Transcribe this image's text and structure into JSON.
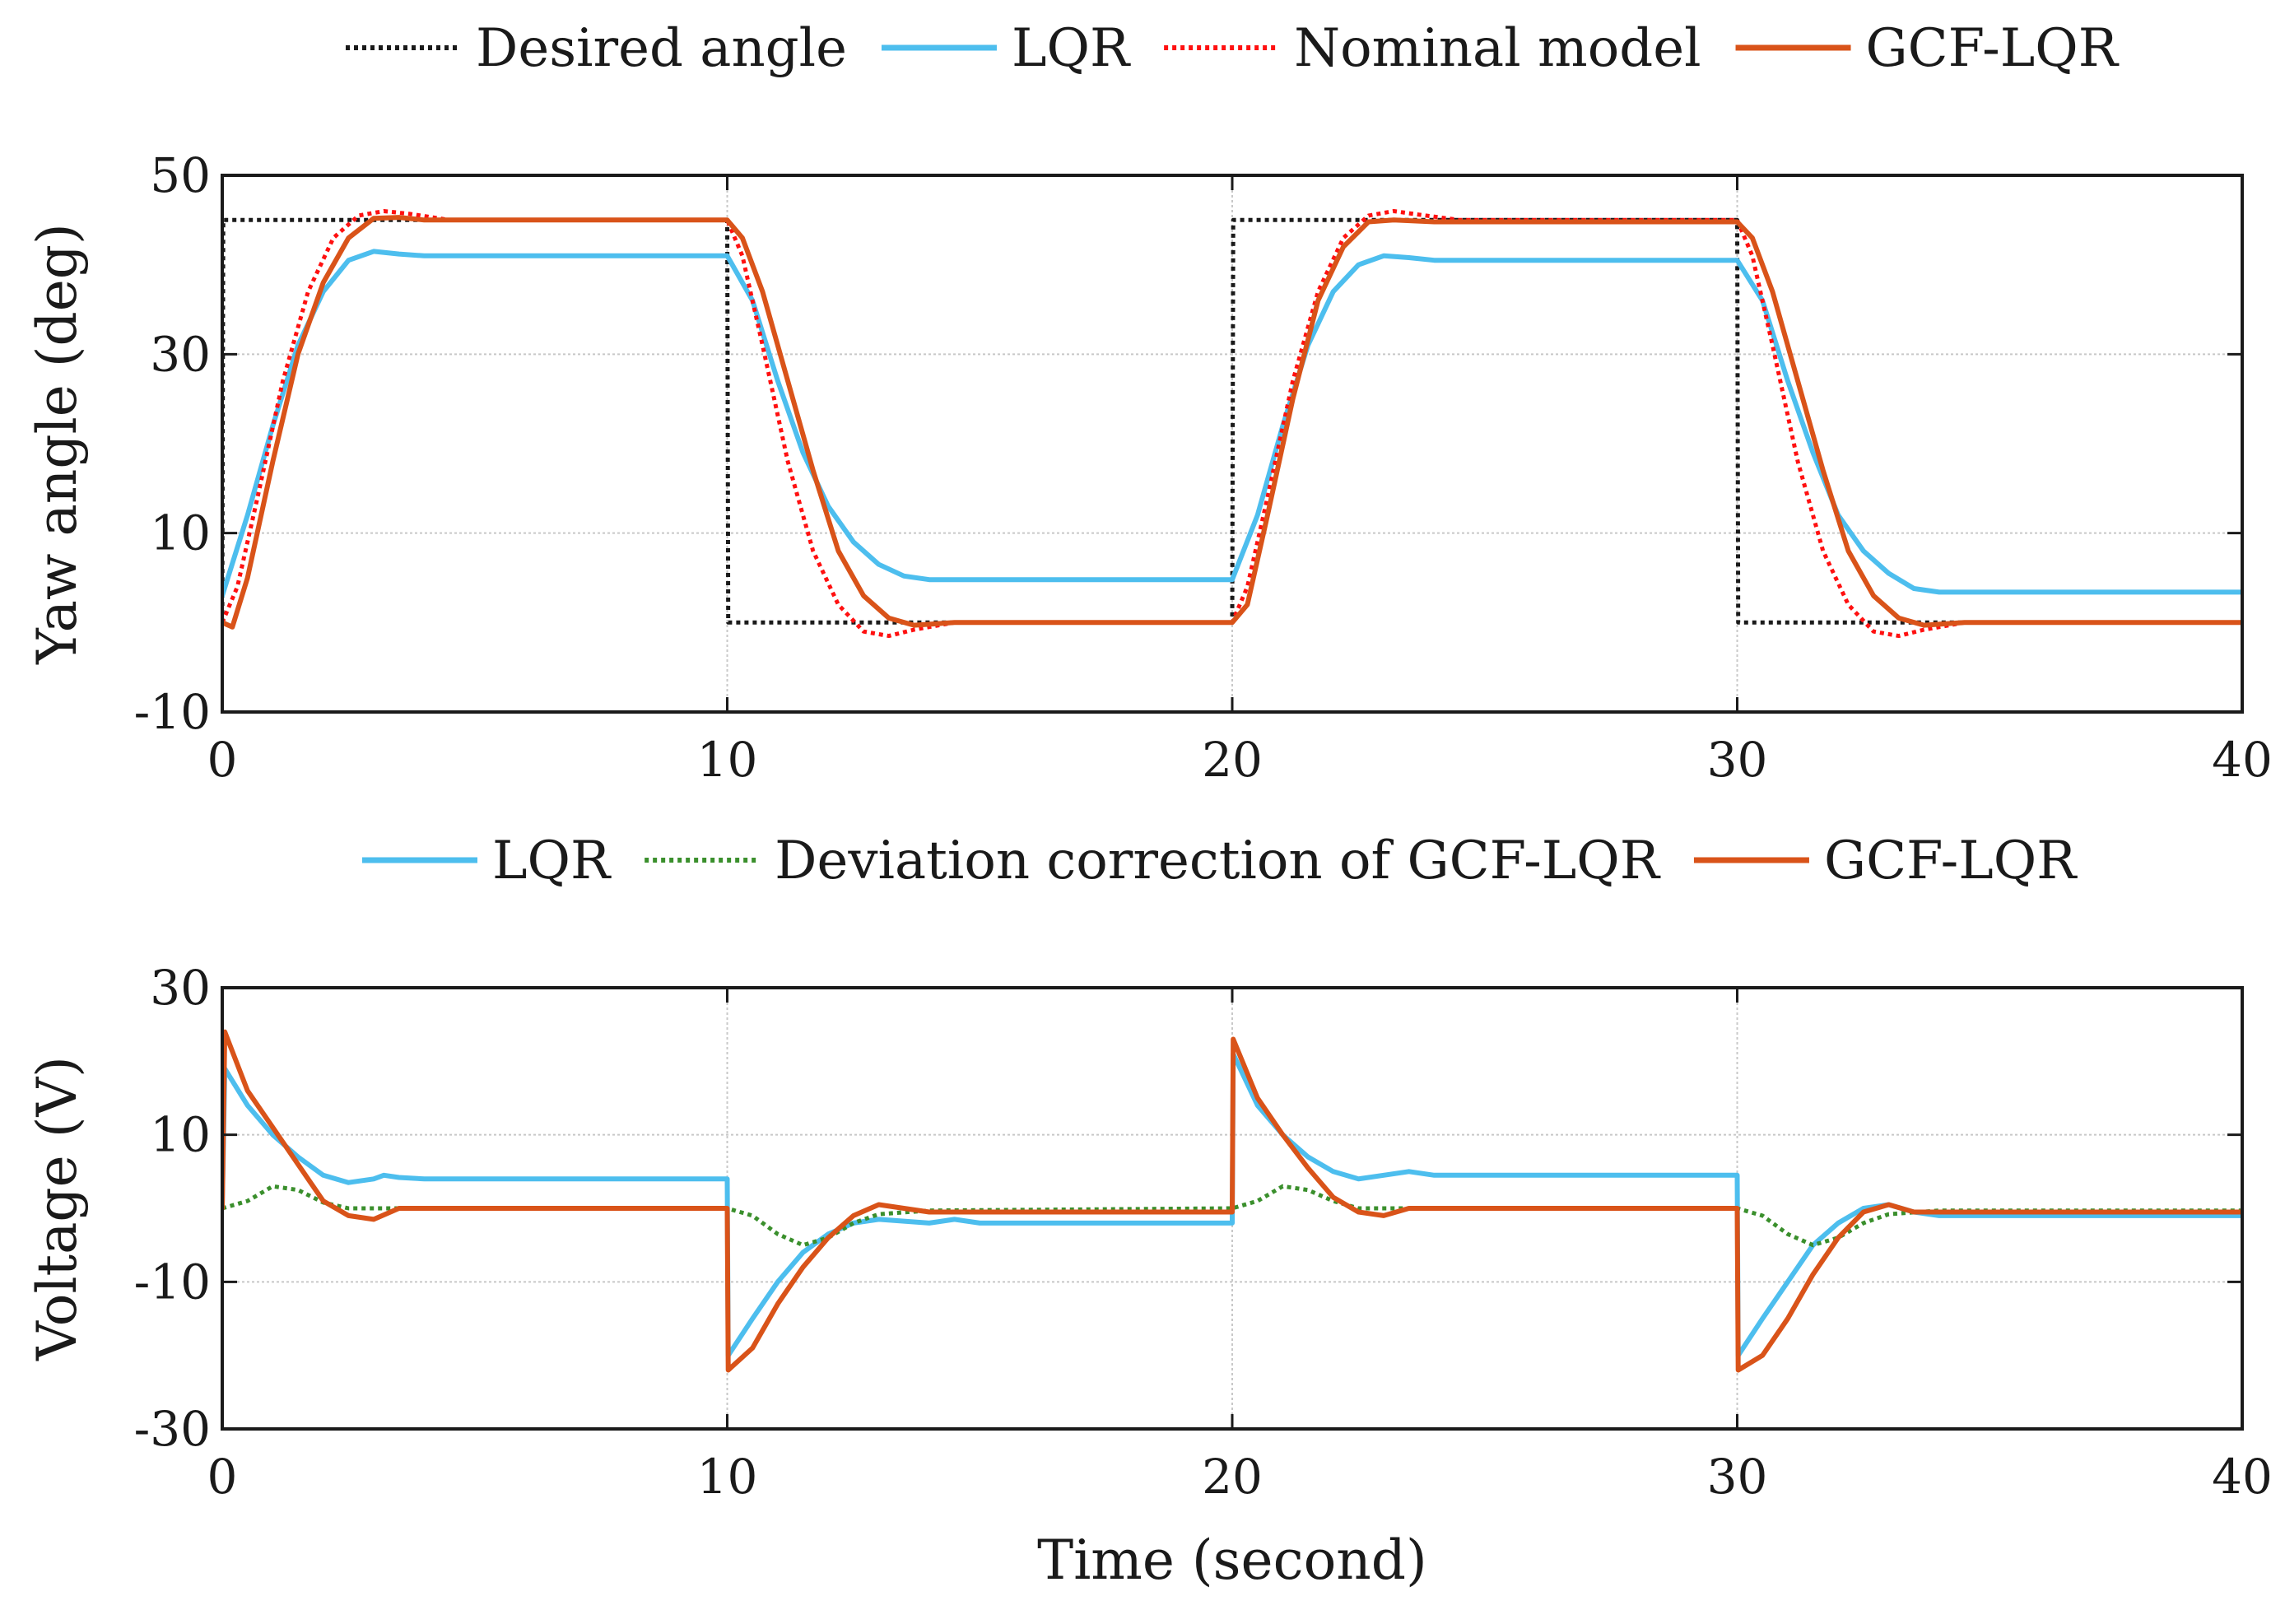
{
  "chart_data": [
    {
      "type": "line",
      "title": "",
      "xlabel": "",
      "ylabel": "Yaw angle (deg)",
      "xlim": [
        0,
        40
      ],
      "ylim": [
        -10,
        50
      ],
      "xticks": [
        "0",
        "10",
        "20",
        "30",
        "40"
      ],
      "yticks": [
        "-10",
        "10",
        "30",
        "50"
      ],
      "grid": true,
      "legend_position": "top-center, above plot",
      "series": [
        {
          "name": "Desired angle",
          "color": "#1a1a1a",
          "style": "dotted",
          "points": [
            [
              0,
              0
            ],
            [
              0.02,
              45
            ],
            [
              10,
              45
            ],
            [
              10.02,
              0
            ],
            [
              20,
              0
            ],
            [
              20.02,
              45
            ],
            [
              30,
              45
            ],
            [
              30.02,
              0
            ],
            [
              40,
              0
            ]
          ]
        },
        {
          "name": "LQR",
          "color": "#4dbeee",
          "style": "solid",
          "points": [
            [
              0,
              3
            ],
            [
              0.5,
              12
            ],
            [
              1,
              22
            ],
            [
              1.5,
              31
            ],
            [
              2,
              37
            ],
            [
              2.5,
              40.5
            ],
            [
              3,
              41.5
            ],
            [
              3.5,
              41.2
            ],
            [
              4,
              41
            ],
            [
              10,
              41
            ],
            [
              10.5,
              36
            ],
            [
              11,
              27
            ],
            [
              11.5,
              19
            ],
            [
              12,
              13
            ],
            [
              12.5,
              9
            ],
            [
              13,
              6.5
            ],
            [
              13.5,
              5.2
            ],
            [
              14,
              4.8
            ],
            [
              20,
              4.8
            ],
            [
              20.5,
              12
            ],
            [
              21,
              22
            ],
            [
              21.5,
              31
            ],
            [
              22,
              37
            ],
            [
              22.5,
              40
            ],
            [
              23,
              41
            ],
            [
              23.5,
              40.8
            ],
            [
              24,
              40.5
            ],
            [
              30,
              40.5
            ],
            [
              30.5,
              36
            ],
            [
              31,
              27
            ],
            [
              31.5,
              19
            ],
            [
              32,
              12
            ],
            [
              32.5,
              8
            ],
            [
              33,
              5.5
            ],
            [
              33.5,
              3.8
            ],
            [
              34,
              3.4
            ],
            [
              40,
              3.4
            ]
          ]
        },
        {
          "name": "Nominal model",
          "color": "#ff1010",
          "style": "dotted",
          "points": [
            [
              0,
              0
            ],
            [
              0.3,
              4
            ],
            [
              0.7,
              14
            ],
            [
              1.2,
              27
            ],
            [
              1.7,
              37
            ],
            [
              2.2,
              43
            ],
            [
              2.7,
              45.5
            ],
            [
              3.2,
              46
            ],
            [
              3.7,
              45.7
            ],
            [
              4.5,
              45
            ],
            [
              10,
              45
            ],
            [
              10.3,
              41
            ],
            [
              10.7,
              31
            ],
            [
              11.2,
              18
            ],
            [
              11.7,
              8
            ],
            [
              12.2,
              2
            ],
            [
              12.7,
              -1
            ],
            [
              13.2,
              -1.5
            ],
            [
              13.7,
              -0.8
            ],
            [
              14.5,
              0
            ],
            [
              20,
              0
            ],
            [
              20.3,
              4
            ],
            [
              20.7,
              14
            ],
            [
              21.2,
              27
            ],
            [
              21.7,
              37
            ],
            [
              22.2,
              43
            ],
            [
              22.7,
              45.5
            ],
            [
              23.2,
              46
            ],
            [
              23.7,
              45.6
            ],
            [
              24.5,
              45
            ],
            [
              30,
              45
            ],
            [
              30.3,
              41
            ],
            [
              30.7,
              31
            ],
            [
              31.2,
              18
            ],
            [
              31.7,
              8
            ],
            [
              32.2,
              2
            ],
            [
              32.7,
              -1
            ],
            [
              33.2,
              -1.5
            ],
            [
              33.7,
              -0.8
            ],
            [
              34.5,
              0
            ],
            [
              40,
              0
            ]
          ]
        },
        {
          "name": "GCF-LQR",
          "color": "#d95319",
          "style": "solid",
          "points": [
            [
              0,
              0
            ],
            [
              0.2,
              -0.5
            ],
            [
              0.5,
              5
            ],
            [
              1,
              18
            ],
            [
              1.5,
              30
            ],
            [
              2,
              38
            ],
            [
              2.5,
              43
            ],
            [
              3,
              45.2
            ],
            [
              3.5,
              45.3
            ],
            [
              4,
              45
            ],
            [
              10,
              45
            ],
            [
              10.3,
              43
            ],
            [
              10.7,
              37
            ],
            [
              11.2,
              27
            ],
            [
              11.7,
              17
            ],
            [
              12.2,
              8
            ],
            [
              12.7,
              3
            ],
            [
              13.2,
              0.5
            ],
            [
              13.7,
              -0.3
            ],
            [
              14.5,
              0
            ],
            [
              20,
              0
            ],
            [
              20.3,
              2
            ],
            [
              20.7,
              12
            ],
            [
              21.2,
              25
            ],
            [
              21.7,
              36
            ],
            [
              22.2,
              42
            ],
            [
              22.7,
              44.8
            ],
            [
              23.2,
              45
            ],
            [
              24,
              44.8
            ],
            [
              30,
              44.8
            ],
            [
              30.3,
              43
            ],
            [
              30.7,
              37
            ],
            [
              31.2,
              27
            ],
            [
              31.7,
              17
            ],
            [
              32.2,
              8
            ],
            [
              32.7,
              3
            ],
            [
              33.2,
              0.5
            ],
            [
              33.7,
              -0.3
            ],
            [
              34.5,
              0
            ],
            [
              40,
              0
            ]
          ]
        }
      ]
    },
    {
      "type": "line",
      "title": "",
      "xlabel": "Time (second)",
      "ylabel": "Voltage (V)",
      "xlim": [
        0,
        40
      ],
      "ylim": [
        -30,
        30
      ],
      "xticks": [
        "0",
        "10",
        "20",
        "30",
        "40"
      ],
      "yticks": [
        "-30",
        "-10",
        "10",
        "30"
      ],
      "grid": true,
      "legend_position": "top-center, above plot",
      "series": [
        {
          "name": "LQR",
          "color": "#4dbeee",
          "style": "solid",
          "points": [
            [
              0,
              0
            ],
            [
              0.05,
              19
            ],
            [
              0.5,
              14
            ],
            [
              1,
              10
            ],
            [
              1.5,
              7
            ],
            [
              2,
              4.5
            ],
            [
              2.5,
              3.5
            ],
            [
              3,
              4
            ],
            [
              3.2,
              4.5
            ],
            [
              3.5,
              4.2
            ],
            [
              4,
              4
            ],
            [
              10,
              4
            ],
            [
              10.02,
              -20
            ],
            [
              10.5,
              -15
            ],
            [
              11,
              -10
            ],
            [
              11.5,
              -6
            ],
            [
              12,
              -3.5
            ],
            [
              12.5,
              -2
            ],
            [
              13,
              -1.5
            ],
            [
              14,
              -2
            ],
            [
              14.5,
              -1.5
            ],
            [
              15,
              -2
            ],
            [
              20,
              -2
            ],
            [
              20.02,
              21
            ],
            [
              20.5,
              14
            ],
            [
              21,
              10
            ],
            [
              21.5,
              7
            ],
            [
              22,
              5
            ],
            [
              22.5,
              4
            ],
            [
              23,
              4.5
            ],
            [
              23.5,
              5
            ],
            [
              24,
              4.5
            ],
            [
              30,
              4.5
            ],
            [
              30.02,
              -20
            ],
            [
              30.5,
              -15
            ],
            [
              31,
              -10
            ],
            [
              31.5,
              -5
            ],
            [
              32,
              -2
            ],
            [
              32.5,
              0
            ],
            [
              33,
              0.5
            ],
            [
              33.5,
              -0.5
            ],
            [
              34,
              -1
            ],
            [
              35,
              -1
            ],
            [
              40,
              -1
            ]
          ]
        },
        {
          "name": "Deviation correction of GCF-LQR",
          "color": "#3a8f2c",
          "style": "dotted",
          "points": [
            [
              0,
              0
            ],
            [
              0.5,
              1
            ],
            [
              1,
              3
            ],
            [
              1.5,
              2.5
            ],
            [
              2,
              0.8
            ],
            [
              2.5,
              0
            ],
            [
              3.5,
              0
            ],
            [
              10,
              0
            ],
            [
              10.5,
              -1
            ],
            [
              11,
              -3.5
            ],
            [
              11.5,
              -5
            ],
            [
              12,
              -4
            ],
            [
              12.5,
              -2
            ],
            [
              13,
              -0.8
            ],
            [
              14,
              -0.3
            ],
            [
              20,
              0
            ],
            [
              20.5,
              1
            ],
            [
              21,
              3
            ],
            [
              21.5,
              2.5
            ],
            [
              22,
              1
            ],
            [
              22.5,
              0
            ],
            [
              30,
              0
            ],
            [
              30.5,
              -1
            ],
            [
              31,
              -3.5
            ],
            [
              31.5,
              -5
            ],
            [
              32,
              -4
            ],
            [
              32.5,
              -2
            ],
            [
              33,
              -0.8
            ],
            [
              34,
              -0.3
            ],
            [
              40,
              -0.3
            ]
          ]
        },
        {
          "name": "GCF-LQR",
          "color": "#d95319",
          "style": "solid",
          "points": [
            [
              0,
              0
            ],
            [
              0.05,
              24
            ],
            [
              0.5,
              16
            ],
            [
              1,
              11
            ],
            [
              1.5,
              6
            ],
            [
              2,
              1
            ],
            [
              2.5,
              -1
            ],
            [
              3,
              -1.5
            ],
            [
              3.5,
              0
            ],
            [
              4,
              0
            ],
            [
              10,
              0
            ],
            [
              10.02,
              -22
            ],
            [
              10.5,
              -19
            ],
            [
              11,
              -13
            ],
            [
              11.5,
              -8
            ],
            [
              12,
              -4
            ],
            [
              12.5,
              -1
            ],
            [
              13,
              0.5
            ],
            [
              13.5,
              0
            ],
            [
              14,
              -0.5
            ],
            [
              20,
              -0.5
            ],
            [
              20.02,
              23
            ],
            [
              20.5,
              15
            ],
            [
              21,
              10
            ],
            [
              21.5,
              5.5
            ],
            [
              22,
              1.5
            ],
            [
              22.5,
              -0.5
            ],
            [
              23,
              -1
            ],
            [
              23.5,
              0
            ],
            [
              24,
              0
            ],
            [
              30,
              0
            ],
            [
              30.02,
              -22
            ],
            [
              30.5,
              -20
            ],
            [
              31,
              -15
            ],
            [
              31.5,
              -9
            ],
            [
              32,
              -4
            ],
            [
              32.5,
              -0.5
            ],
            [
              33,
              0.5
            ],
            [
              33.5,
              -0.5
            ],
            [
              34,
              -0.5
            ],
            [
              40,
              -0.5
            ]
          ]
        }
      ]
    }
  ]
}
